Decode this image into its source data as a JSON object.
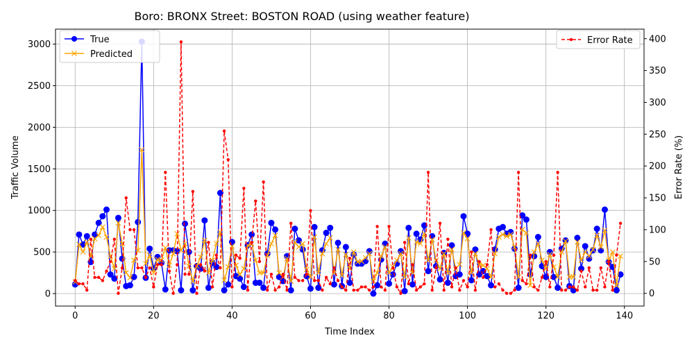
{
  "chart_data": {
    "type": "line",
    "title": "Boro: BRONX Street: BOSTON ROAD (using weather feature)",
    "xlabel": "Time Index",
    "ylabel": "Traffic Volume",
    "y2label": "Error Rate (%)",
    "xlim": [
      -5,
      145
    ],
    "ylim": [
      -150,
      3180
    ],
    "y2lim": [
      -20,
      415
    ],
    "xticks": [
      0,
      20,
      40,
      60,
      80,
      100,
      120,
      140
    ],
    "yticks": [
      0,
      500,
      1000,
      1500,
      2000,
      2500,
      3000
    ],
    "y2ticks": [
      0,
      50,
      100,
      150,
      200,
      250,
      300,
      350,
      400
    ],
    "grid": true,
    "legend_left": "upper-left",
    "legend_right": "upper-right",
    "colors": {
      "true": "#0000ff",
      "predicted": "#ffa500",
      "error": "#ff0000"
    },
    "series": [
      {
        "name": "True",
        "axis": "left",
        "style": "solid-circle",
        "values": [
          110,
          710,
          590,
          690,
          380,
          710,
          850,
          930,
          1010,
          230,
          180,
          910,
          420,
          90,
          100,
          200,
          860,
          3030,
          190,
          540,
          300,
          440,
          370,
          50,
          520,
          520,
          510,
          40,
          840,
          500,
          40,
          330,
          300,
          880,
          70,
          370,
          320,
          1210,
          40,
          110,
          620,
          210,
          180,
          80,
          580,
          710,
          130,
          130,
          70,
          480,
          850,
          770,
          200,
          150,
          450,
          40,
          780,
          640,
          530,
          210,
          60,
          800,
          70,
          520,
          730,
          790,
          110,
          610,
          90,
          560,
          130,
          470,
          360,
          360,
          390,
          510,
          0,
          100,
          410,
          600,
          120,
          230,
          360,
          510,
          30,
          790,
          110,
          720,
          650,
          820,
          270,
          690,
          330,
          170,
          490,
          130,
          580,
          210,
          230,
          930,
          720,
          160,
          530,
          230,
          270,
          210,
          100,
          530,
          780,
          800,
          720,
          740,
          540,
          70,
          940,
          890,
          230,
          450,
          680,
          330,
          200,
          500,
          200,
          70,
          540,
          640,
          90,
          40,
          670,
          300,
          570,
          420,
          520,
          780,
          520,
          1010,
          380,
          320,
          40,
          230
        ]
      },
      {
        "name": "Predicted",
        "axis": "left",
        "style": "solid-x",
        "values": [
          140,
          590,
          500,
          620,
          450,
          660,
          700,
          800,
          680,
          450,
          300,
          850,
          600,
          250,
          190,
          400,
          520,
          1730,
          360,
          460,
          250,
          410,
          400,
          550,
          340,
          480,
          720,
          520,
          600,
          330,
          150,
          330,
          440,
          640,
          250,
          400,
          600,
          740,
          160,
          320,
          570,
          340,
          230,
          300,
          580,
          600,
          400,
          250,
          250,
          460,
          600,
          700,
          250,
          200,
          420,
          150,
          620,
          560,
          600,
          290,
          200,
          680,
          250,
          480,
          600,
          670,
          250,
          530,
          220,
          470,
          300,
          500,
          380,
          390,
          430,
          480,
          150,
          250,
          450,
          560,
          250,
          320,
          400,
          480,
          200,
          670,
          250,
          620,
          600,
          720,
          400,
          650,
          400,
          300,
          480,
          250,
          530,
          300,
          350,
          730,
          660,
          250,
          480,
          350,
          340,
          300,
          200,
          480,
          680,
          710,
          690,
          710,
          560,
          200,
          770,
          730,
          100,
          500,
          600,
          400,
          300,
          470,
          320,
          200,
          500,
          630,
          200,
          200,
          620,
          400,
          500,
          450,
          530,
          700,
          560,
          760,
          400,
          500,
          100,
          450
        ]
      },
      {
        "name": "Error Rate",
        "axis": "right",
        "style": "dashed-dot",
        "values": [
          20,
          15,
          15,
          5,
          85,
          25,
          25,
          20,
          35,
          50,
          85,
          0,
          40,
          150,
          100,
          100,
          40,
          40,
          25,
          40,
          10,
          45,
          45,
          190,
          35,
          0,
          45,
          395,
          30,
          30,
          160,
          0,
          45,
          35,
          80,
          10,
          60,
          40,
          255,
          210,
          10,
          60,
          55,
          165,
          5,
          80,
          145,
          50,
          175,
          5,
          30,
          5,
          10,
          30,
          5,
          110,
          25,
          20,
          20,
          30,
          130,
          20,
          20,
          5,
          25,
          15,
          40,
          20,
          10,
          5,
          55,
          5,
          5,
          10,
          10,
          5,
          10,
          105,
          10,
          5,
          105,
          40,
          10,
          0,
          80,
          15,
          45,
          5,
          10,
          15,
          190,
          5,
          40,
          110,
          5,
          85,
          10,
          40,
          5,
          20,
          10,
          65,
          5,
          50,
          25,
          45,
          100,
          10,
          15,
          5,
          0,
          0,
          5,
          190,
          20,
          15,
          60,
          10,
          5,
          25,
          50,
          10,
          60,
          190,
          5,
          5,
          10,
          10,
          5,
          35,
          10,
          40,
          5,
          5,
          40,
          10,
          50,
          5,
          60,
          110
        ]
      }
    ]
  }
}
